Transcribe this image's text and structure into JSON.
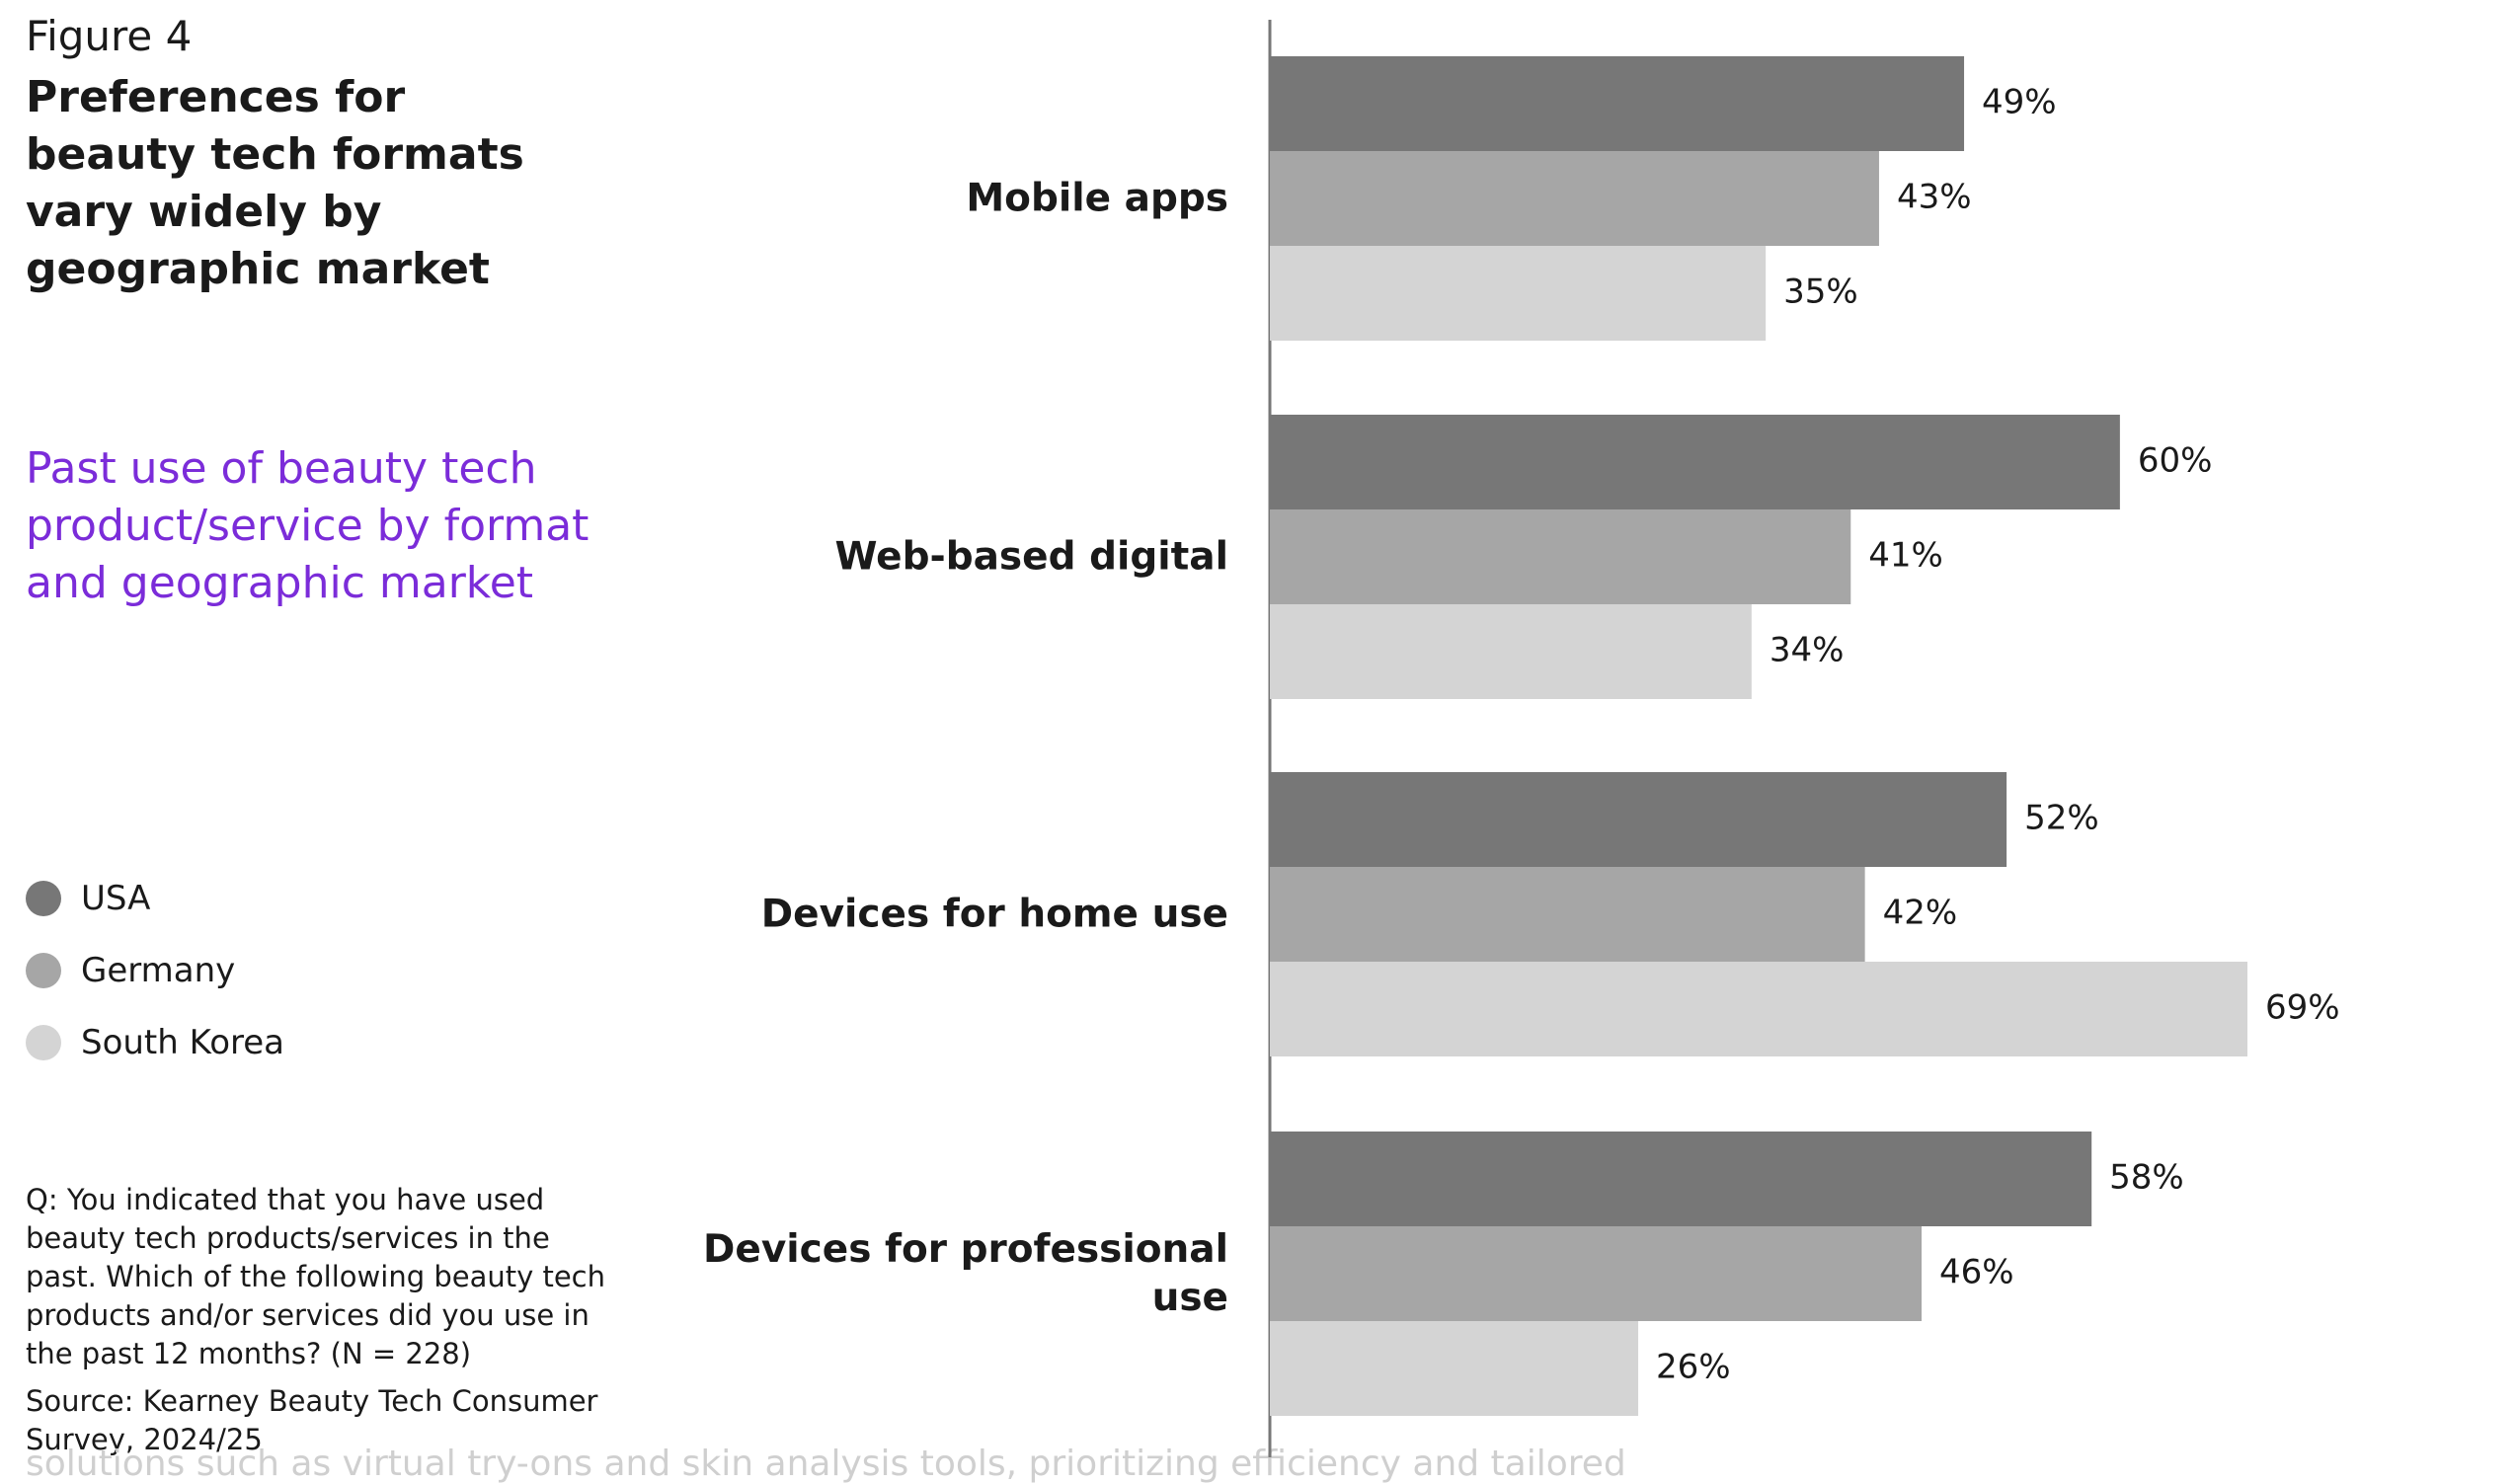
{
  "figure_label": "Figure 4",
  "footer_fragment": "solutions such as virtual try-ons and skin analysis tools, prioritizing efficiency and tailored",
  "chart_data": {
    "type": "barh",
    "title": "Preferences for beauty tech formats vary widely by geographic market",
    "subtitle": "Past use of beauty tech product/service by format and geographic market",
    "note": "Q: You indicated that you have used beauty tech products/services in the past. Which of the following beauty tech products and/or services did you use in the past 12 months? (N = 228)",
    "source": "Source: Kearney Beauty Tech Consumer Survey, 2024/25",
    "categories": [
      "Mobile apps",
      "Web-based digital",
      "Devices for home use",
      "Devices for professional use"
    ],
    "series": [
      {
        "name": "USA",
        "color": "#777777",
        "values": [
          49,
          60,
          52,
          58
        ],
        "value_labels": [
          "49%",
          "60%",
          "52%",
          "58%"
        ]
      },
      {
        "name": "Germany",
        "color": "#a6a6a6",
        "values": [
          43,
          41,
          42,
          46
        ],
        "value_labels": [
          "43%",
          "41%",
          "42%",
          "46%"
        ]
      },
      {
        "name": "South Korea",
        "color": "#d4d4d4",
        "values": [
          35,
          34,
          69,
          26
        ],
        "value_labels": [
          "35%",
          "34%",
          "69%",
          "26%"
        ]
      }
    ],
    "legend": "left"
  }
}
